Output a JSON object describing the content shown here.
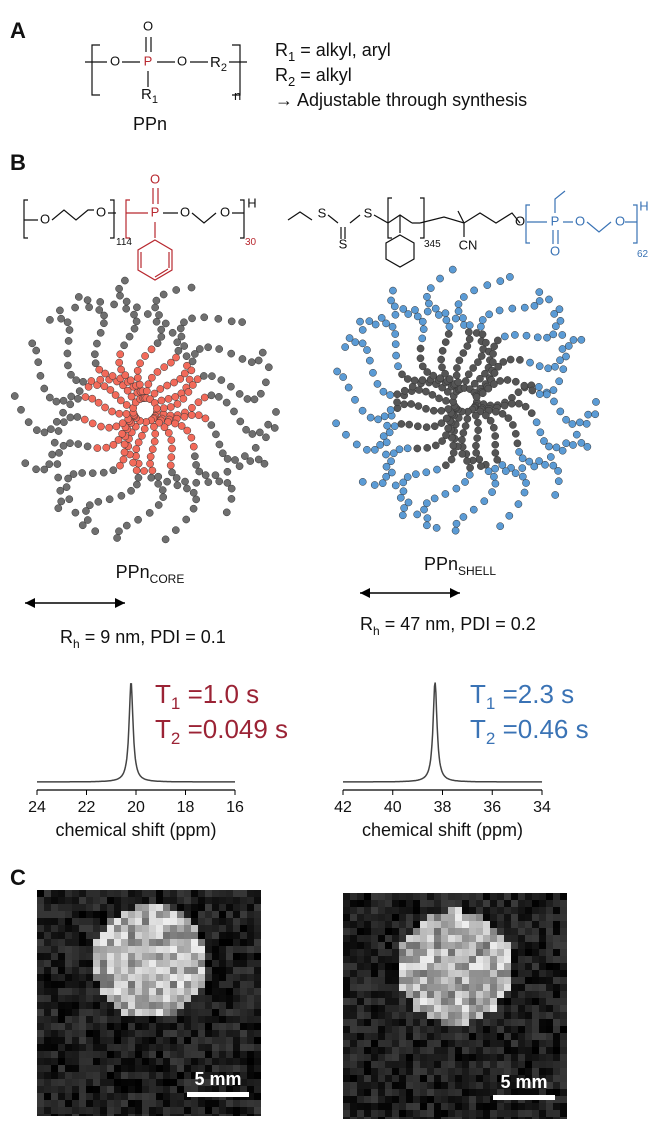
{
  "panel_a": {
    "label": "A",
    "structure": {
      "o_top": "O",
      "p": "P",
      "o_left": "O",
      "o_right": "O",
      "r2": {
        "main": "R",
        "sub": "2"
      },
      "r1": {
        "main": "R",
        "sub": "1"
      },
      "n": "n"
    },
    "name": "PPn",
    "notes": [
      {
        "main": "R",
        "sub": "1",
        "rest": " = alkyl, aryl"
      },
      {
        "main": "R",
        "sub": "2",
        "rest": " = alkyl"
      },
      {
        "main": "→ Adjustable through synthesis"
      }
    ]
  },
  "panel_b": {
    "label": "B",
    "core_structure": {
      "atoms": [
        "O",
        "O",
        "P",
        "O",
        "O",
        "O",
        "H"
      ],
      "subs": [
        "114",
        "30"
      ]
    },
    "shell_structure": {
      "atoms": [
        "S",
        "S",
        "S",
        "CN",
        "O",
        "P",
        "O",
        "O",
        "O",
        "H"
      ],
      "subs": [
        "345",
        "62"
      ]
    },
    "micelles": [
      {
        "main": "PPn",
        "sub": "CORE"
      },
      {
        "main": "PPn",
        "sub": "SHELL"
      }
    ],
    "sizes": [
      {
        "main": "R",
        "sub": "h",
        "rest": " = 9 nm, PDI = 0.1"
      },
      {
        "main": "R",
        "sub": "h",
        "rest": " = 47 nm, PDI = 0.2"
      }
    ],
    "spectra": [
      {
        "xlim": [
          24,
          16
        ],
        "xticks": [
          24,
          22,
          20,
          18,
          16
        ],
        "peak": 20.2,
        "x_label": "chemical shift (ppm)",
        "t1": {
          "main": "T",
          "sub": "1",
          "rest": " =1.0 s"
        },
        "t2": {
          "main": "T",
          "sub": "2",
          "rest": " =0.049 s"
        }
      },
      {
        "xlim": [
          42,
          34
        ],
        "xticks": [
          42,
          40,
          38,
          36,
          34
        ],
        "peak": 38.3,
        "x_label": "chemical shift (ppm)",
        "t1": {
          "main": "T",
          "sub": "1",
          "rest": " =2.3 s"
        },
        "t2": {
          "main": "T",
          "sub": "2",
          "rest": " =0.46 s"
        }
      }
    ]
  },
  "panel_c": {
    "label": "C",
    "scale_bars": [
      "5 mm",
      "5 mm"
    ]
  }
}
